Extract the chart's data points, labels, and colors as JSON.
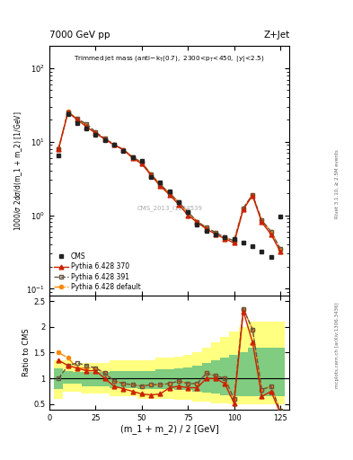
{
  "title_top": "7000 GeV pp",
  "title_right": "Z+Jet",
  "plot_title": "Trimmed jet mass",
  "plot_subtitle": "(anti-k_{T}(0.7), 2300<p_{T}<450, |y|<2.5)",
  "xlabel": "(m_1 + m_2) / 2 [GeV]",
  "ylabel_top": "1000/σ 2dσ/d(m_1 + m_2) [1/GeV]",
  "ylabel_bottom": "Ratio to CMS",
  "watermark": "CMS_2013_I1224539",
  "rivet_label": "Rivet 3.1.10, ≥ 2.5M events",
  "mcplots_label": "mcplots.cern.ch [arXiv:1306.3436]",
  "x_data": [
    5,
    10,
    15,
    20,
    25,
    30,
    35,
    40,
    45,
    50,
    55,
    60,
    65,
    70,
    75,
    80,
    85,
    90,
    95,
    100,
    105,
    110,
    115,
    120,
    125
  ],
  "cms_y_full": [
    6.5,
    24.0,
    18.0,
    15.0,
    12.5,
    10.5,
    9.2,
    7.5,
    6.2,
    5.5,
    3.3,
    2.8,
    2.1,
    1.5,
    1.1,
    0.75,
    0.62,
    0.55,
    0.5,
    0.48,
    0.42,
    0.38,
    0.32,
    0.27,
    0.95
  ],
  "py370_y": [
    8.0,
    25.0,
    20.0,
    16.0,
    13.0,
    10.8,
    9.0,
    7.8,
    6.0,
    5.0,
    3.5,
    2.5,
    1.9,
    1.4,
    1.0,
    0.8,
    0.65,
    0.55,
    0.48,
    0.42,
    1.2,
    1.85,
    0.8,
    0.55,
    0.32
  ],
  "py391_y": [
    8.0,
    25.0,
    20.5,
    17.5,
    13.5,
    11.0,
    9.2,
    7.8,
    6.2,
    5.2,
    3.6,
    2.6,
    2.0,
    1.5,
    1.1,
    0.82,
    0.68,
    0.58,
    0.5,
    0.45,
    1.25,
    1.9,
    0.85,
    0.6,
    0.35
  ],
  "pydef_y": [
    8.2,
    25.5,
    20.5,
    17.0,
    13.5,
    11.0,
    9.2,
    7.8,
    6.2,
    5.2,
    3.6,
    2.6,
    2.0,
    1.5,
    1.1,
    0.82,
    0.68,
    0.58,
    0.5,
    0.44,
    1.25,
    1.9,
    0.85,
    0.6,
    0.35
  ],
  "ratio_py370": [
    1.35,
    1.25,
    1.2,
    1.15,
    1.15,
    1.0,
    0.85,
    0.8,
    0.75,
    0.7,
    0.68,
    0.7,
    0.82,
    0.85,
    0.82,
    0.82,
    1.0,
    1.0,
    0.9,
    0.52,
    2.3,
    1.7,
    0.65,
    0.75,
    0.33
  ],
  "ratio_py391": [
    1.0,
    1.25,
    1.3,
    1.25,
    1.2,
    1.1,
    0.95,
    0.9,
    0.88,
    0.85,
    0.88,
    0.88,
    0.9,
    0.95,
    0.9,
    0.9,
    1.1,
    1.05,
    1.0,
    0.6,
    2.35,
    1.95,
    0.78,
    0.85,
    0.37
  ],
  "ratio_pydef": [
    1.5,
    1.4,
    1.2,
    1.2,
    1.2,
    1.1,
    0.95,
    0.9,
    0.88,
    0.85,
    0.88,
    0.88,
    0.9,
    0.95,
    0.9,
    0.9,
    1.1,
    1.05,
    1.0,
    0.6,
    2.35,
    1.95,
    0.78,
    0.85,
    0.37
  ],
  "band_yellow_lo": [
    0.6,
    0.75,
    0.75,
    0.7,
    0.7,
    0.7,
    0.65,
    0.65,
    0.65,
    0.6,
    0.6,
    0.6,
    0.6,
    0.58,
    0.58,
    0.55,
    0.55,
    0.52,
    0.52,
    0.5,
    0.5,
    0.5,
    0.5,
    0.5,
    0.5
  ],
  "band_yellow_hi": [
    1.35,
    1.35,
    1.3,
    1.3,
    1.3,
    1.3,
    1.35,
    1.35,
    1.35,
    1.35,
    1.35,
    1.4,
    1.4,
    1.42,
    1.45,
    1.5,
    1.6,
    1.7,
    1.8,
    1.9,
    2.0,
    2.1,
    2.1,
    2.1,
    2.1
  ],
  "band_green_lo": [
    0.8,
    0.9,
    0.9,
    0.85,
    0.85,
    0.85,
    0.82,
    0.82,
    0.82,
    0.8,
    0.8,
    0.8,
    0.8,
    0.78,
    0.78,
    0.75,
    0.72,
    0.7,
    0.68,
    0.65,
    0.65,
    0.65,
    0.65,
    0.65,
    0.65
  ],
  "band_green_hi": [
    1.2,
    1.15,
    1.12,
    1.12,
    1.12,
    1.12,
    1.15,
    1.15,
    1.15,
    1.15,
    1.15,
    1.18,
    1.18,
    1.2,
    1.22,
    1.25,
    1.3,
    1.35,
    1.4,
    1.45,
    1.5,
    1.6,
    1.6,
    1.6,
    1.6
  ],
  "color_cms": "#222222",
  "color_py370": "#cc2200",
  "color_py391": "#665544",
  "color_pydef": "#ff8800",
  "color_yellow": "#ffff80",
  "color_green": "#80cc80",
  "background_color": "#ffffff"
}
